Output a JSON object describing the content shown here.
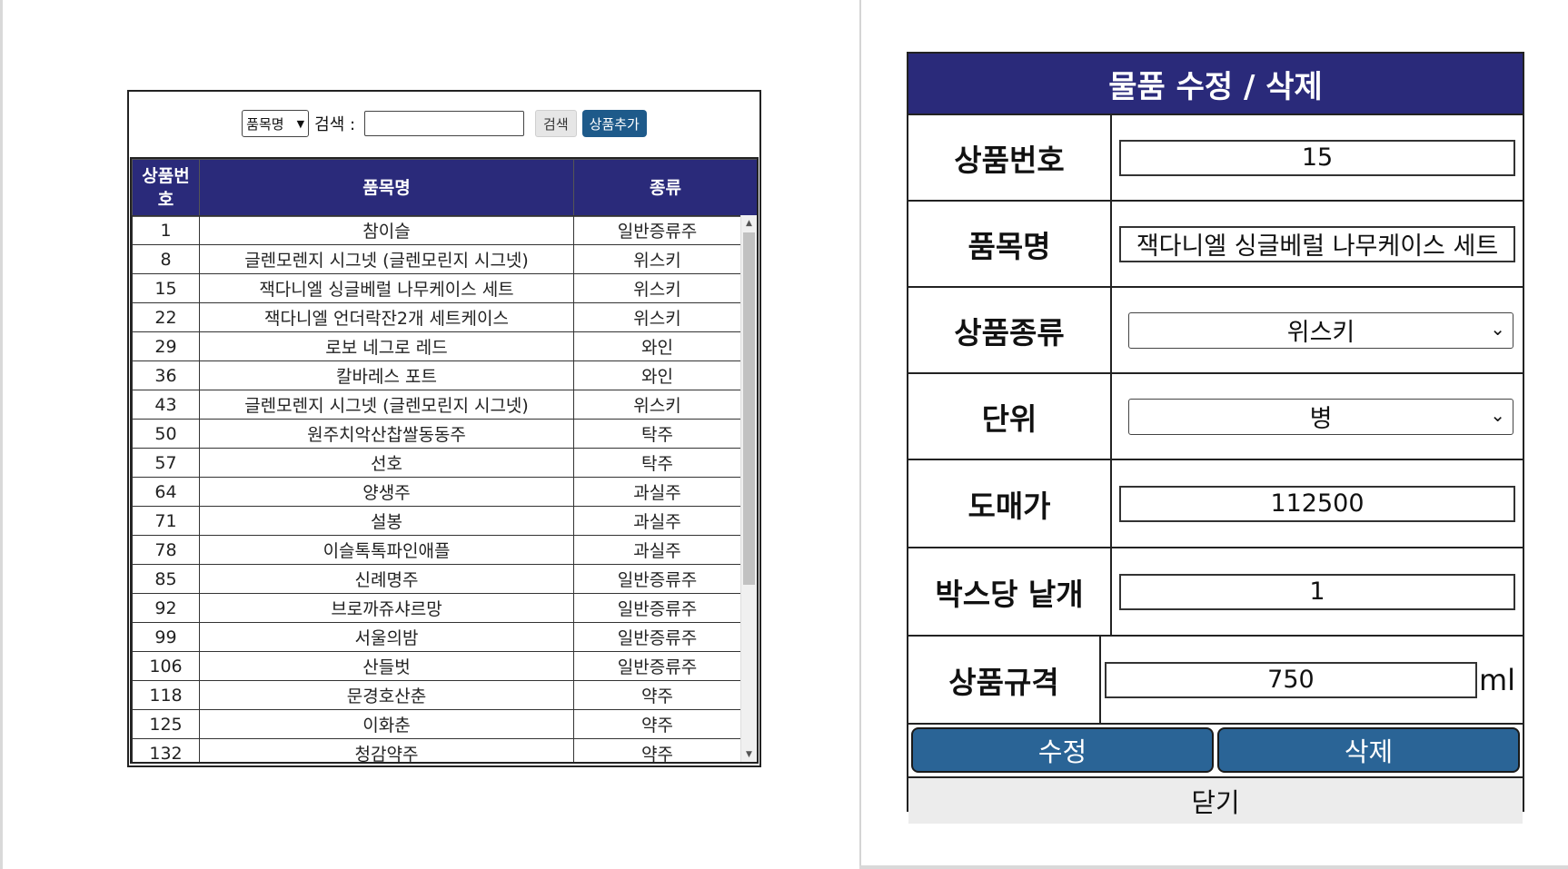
{
  "search": {
    "select_value": "품목명",
    "label": "검색 :",
    "search_button": "검색",
    "add_button": "상품추가"
  },
  "table": {
    "headers": [
      "상품번\n호",
      "품목명",
      "종류"
    ],
    "rows": [
      [
        "1",
        "참이슬",
        "일반증류주"
      ],
      [
        "8",
        "글렌모렌지 시그넷 (글렌모린지 시그넷)",
        "위스키"
      ],
      [
        "15",
        "잭다니엘 싱글베럴 나무케이스 세트",
        "위스키"
      ],
      [
        "22",
        "잭다니엘 언더락잔2개 세트케이스",
        "위스키"
      ],
      [
        "29",
        "로보 네그로 레드",
        "와인"
      ],
      [
        "36",
        "칼바레스 포트",
        "와인"
      ],
      [
        "43",
        "글렌모렌지 시그넷 (글렌모린지 시그넷)",
        "위스키"
      ],
      [
        "50",
        "원주치악산찹쌀동동주",
        "탁주"
      ],
      [
        "57",
        "선호",
        "탁주"
      ],
      [
        "64",
        "양생주",
        "과실주"
      ],
      [
        "71",
        "설봉",
        "과실주"
      ],
      [
        "78",
        "이슬톡톡파인애플",
        "과실주"
      ],
      [
        "85",
        "신례명주",
        "일반증류주"
      ],
      [
        "92",
        "브로까쥬샤르망",
        "일반증류주"
      ],
      [
        "99",
        "서울의밤",
        "일반증류주"
      ],
      [
        "106",
        "산들벗",
        "일반증류주"
      ],
      [
        "118",
        "문경호산춘",
        "약주"
      ],
      [
        "125",
        "이화춘",
        "약주"
      ],
      [
        "132",
        "청감약주",
        "약주"
      ]
    ]
  },
  "form": {
    "title": "물품 수정 / 삭제",
    "fields": [
      {
        "label": "상품번호",
        "value": "15"
      },
      {
        "label": "품목명",
        "value": "잭다니엘 싱글베럴 나무케이스 세트"
      },
      {
        "label": "상품종류",
        "value": "위스키"
      },
      {
        "label": "단위",
        "value": "병"
      },
      {
        "label": "도매가",
        "value": "112500"
      },
      {
        "label": "박스당 낱개",
        "value": "1"
      },
      {
        "label": "상품규격",
        "value": "750"
      }
    ],
    "unit": "ml",
    "edit_button": "수정",
    "delete_button": "삭제",
    "close_button": "닫기"
  }
}
